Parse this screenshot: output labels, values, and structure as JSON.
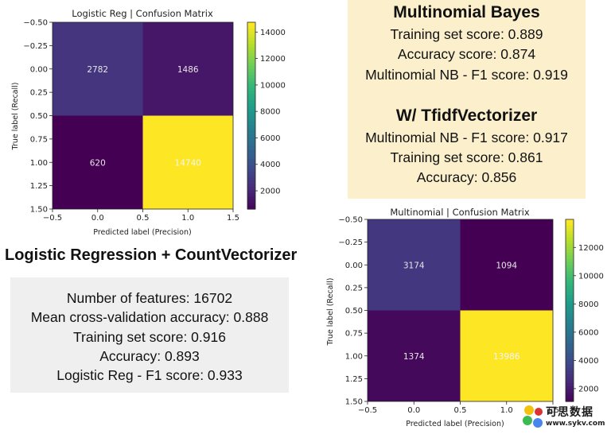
{
  "chart_data": [
    {
      "type": "heatmap",
      "title": "Logistic Reg | Confusion Matrix",
      "xlabel": "Predicted label (Precision)",
      "ylabel": "True label (Recall)",
      "x_ticks": [
        "−0.5",
        "0.0",
        "0.5",
        "1.0",
        "1.5"
      ],
      "y_ticks": [
        "−0.50",
        "−0.25",
        "0.00",
        "0.25",
        "0.50",
        "0.75",
        "1.00",
        "1.25",
        "1.50"
      ],
      "matrix": [
        [
          2782,
          1486
        ],
        [
          620,
          14740
        ]
      ],
      "cell_labels": [
        [
          "2782",
          "1486"
        ],
        [
          "620",
          "14740"
        ]
      ],
      "colorbar_ticks": [
        "2000",
        "4000",
        "6000",
        "8000",
        "10000",
        "12000",
        "14000"
      ],
      "colorbar_range": [
        620,
        14740
      ],
      "colormap": "viridis"
    },
    {
      "type": "heatmap",
      "title": "Multinomial | Confusion Matrix",
      "xlabel": "Predicted label (Precision)",
      "ylabel": "True label (Recall)",
      "x_ticks": [
        "−0.5",
        "0.0",
        "0.5",
        "1.0",
        "1.5"
      ],
      "y_ticks": [
        "−0.50",
        "−0.25",
        "0.00",
        "0.25",
        "0.50",
        "0.75",
        "1.00",
        "1.25",
        "1.50"
      ],
      "matrix": [
        [
          3174,
          1094
        ],
        [
          1374,
          13986
        ]
      ],
      "cell_labels": [
        [
          "3174",
          "1094"
        ],
        [
          "1374",
          "13986"
        ]
      ],
      "colorbar_ticks": [
        "2000",
        "4000",
        "6000",
        "8000",
        "10000",
        "12000"
      ],
      "colorbar_range": [
        1094,
        13986
      ],
      "colormap": "viridis"
    }
  ],
  "nb_panel": {
    "title": "Multinomial Bayes",
    "lines": [
      "Training set score: 0.889",
      "Accuracy score: 0.874",
      "Multinomial NB - F1 score: 0.919"
    ],
    "subtitle": "W/ TfidfVectorizer",
    "sub_lines": [
      "Multinomial NB - F1 score: 0.917",
      "Training set score: 0.861",
      "Accuracy:   0.856"
    ],
    "background": "#fbefcc"
  },
  "lr_panel": {
    "title": "Logistic Regression + CountVectorizer",
    "lines": [
      "Number of features: 16702",
      "Mean cross-validation accuracy: 0.888",
      "Training set score: 0.916",
      "Accuracy:   0.893",
      "Logistic Reg - F1 score: 0.933"
    ],
    "background": "#efefef"
  },
  "watermark": {
    "brand": "可思数据",
    "url": "www.sykv.com",
    "icon": "colored-dots-logo"
  }
}
